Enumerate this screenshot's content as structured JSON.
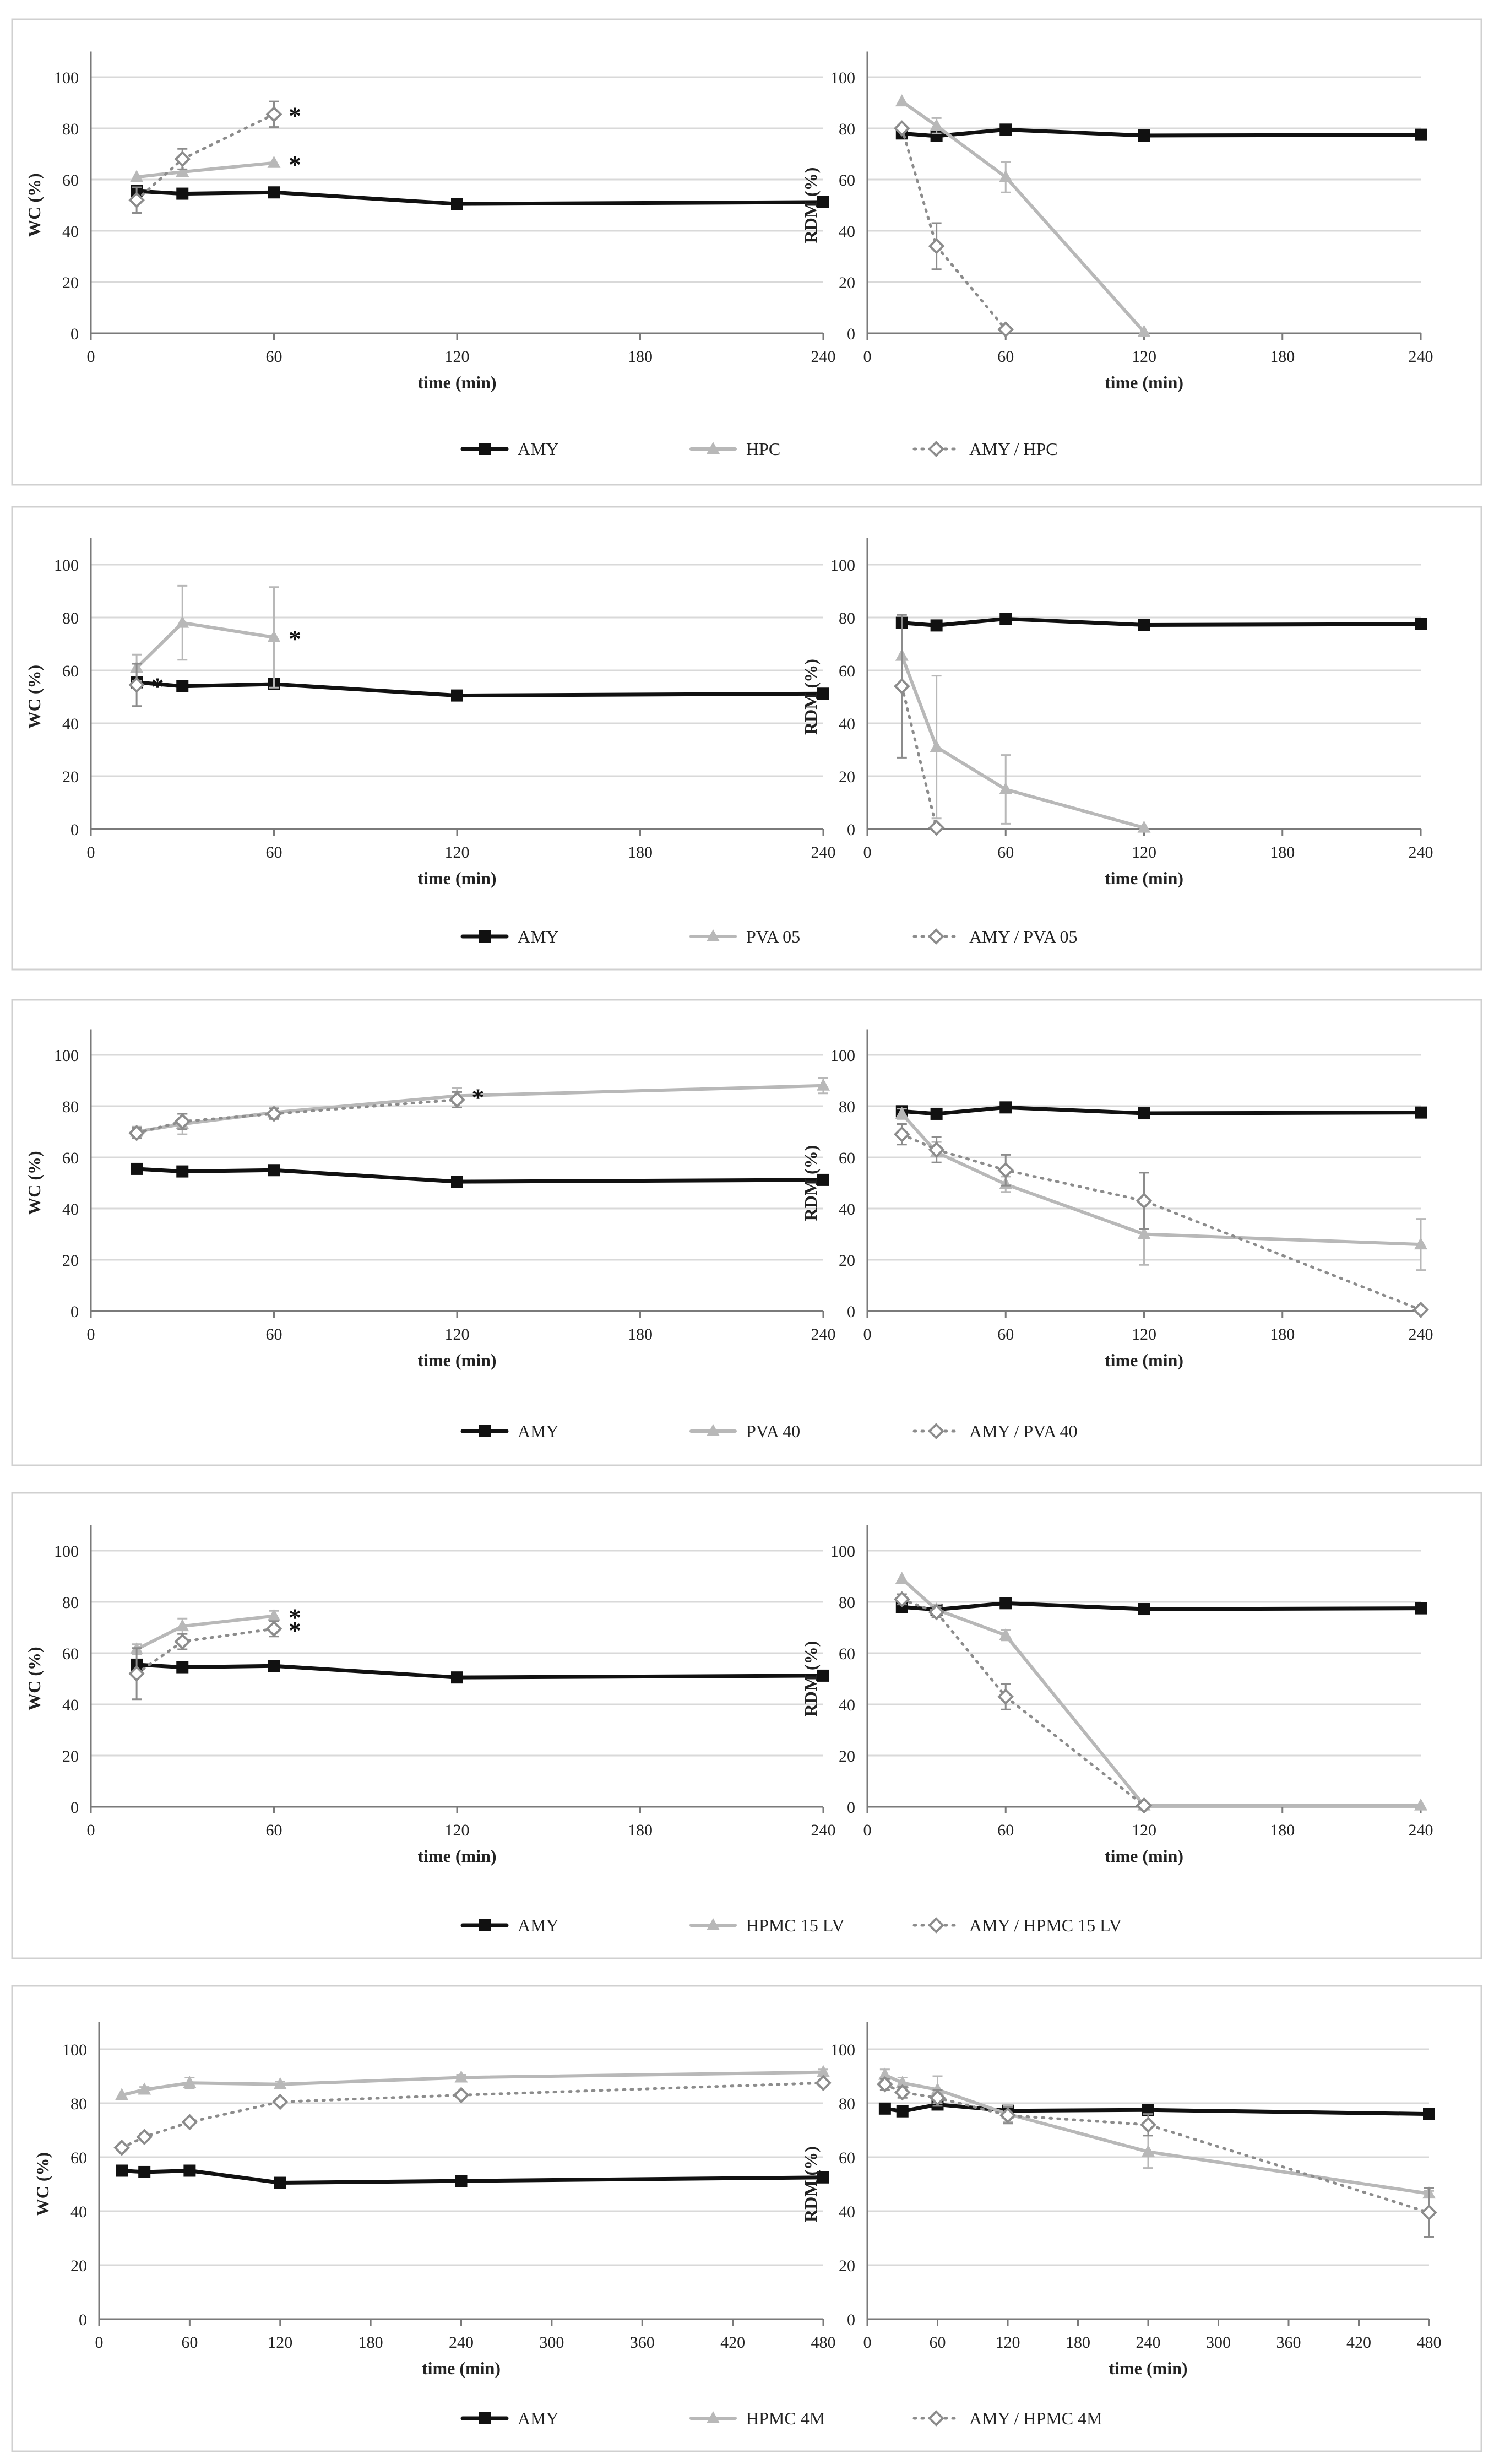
{
  "colors": {
    "amy": "#111111",
    "polymer": "#b8b8b8",
    "blend": "#8c8c8c",
    "grid": "#d9d9d9",
    "axis": "#7a7a7a",
    "frame": "#d0d0d0",
    "tick_text": "#222222"
  },
  "chart_data": [
    {
      "type": "line",
      "xlabel": "time (min)",
      "legend": [
        "AMY",
        "HPC",
        "AMY / HPC"
      ],
      "legend_position": "bottom-center",
      "panels": [
        {
          "ylabel": "WC (%)",
          "xlim": [
            0,
            240
          ],
          "xticks": [
            "0",
            "60",
            "120",
            "180",
            "240"
          ],
          "ylim": [
            0,
            100
          ],
          "yticks": [
            "0",
            "20",
            "40",
            "60",
            "80",
            "100"
          ],
          "series": [
            {
              "name": "AMY",
              "x": [
                15,
                30,
                60,
                120,
                240
              ],
              "y": [
                55.5,
                54.5,
                55,
                50.5,
                51.2
              ]
            },
            {
              "name": "HPC",
              "x": [
                15,
                30,
                60
              ],
              "y": [
                61,
                63,
                66.5
              ]
            },
            {
              "name": "AMY / HPC",
              "x": [
                15,
                30,
                60
              ],
              "y": [
                52,
                68,
                85.5
              ],
              "err": [
                5,
                4,
                5
              ]
            }
          ],
          "annotations": [
            {
              "x": 60,
              "y": 85.5,
              "text": "*"
            },
            {
              "x": 60,
              "y": 66.5,
              "text": "*"
            }
          ]
        },
        {
          "ylabel": "RDM (%)",
          "xlim": [
            0,
            240
          ],
          "xticks": [
            "0",
            "60",
            "120",
            "180",
            "240"
          ],
          "ylim": [
            0,
            100
          ],
          "yticks": [
            "0",
            "20",
            "40",
            "60",
            "80",
            "100"
          ],
          "series": [
            {
              "name": "AMY",
              "x": [
                15,
                30,
                60,
                120,
                240
              ],
              "y": [
                78,
                77,
                79.5,
                77.2,
                77.5
              ]
            },
            {
              "name": "HPC",
              "x": [
                15,
                30,
                60,
                120
              ],
              "y": [
                90.5,
                81,
                61,
                0.5
              ],
              "err": [
                0,
                3,
                6,
                0
              ]
            },
            {
              "name": "AMY / HPC",
              "x": [
                15,
                30,
                60
              ],
              "y": [
                80,
                34,
                1.5
              ],
              "err": [
                0,
                9,
                0
              ]
            }
          ],
          "annotations": []
        }
      ]
    },
    {
      "type": "line",
      "xlabel": "time (min)",
      "legend": [
        "AMY",
        "PVA 05",
        "AMY / PVA 05"
      ],
      "legend_position": "bottom-center",
      "panels": [
        {
          "ylabel": "WC (%)",
          "xlim": [
            0,
            240
          ],
          "xticks": [
            "0",
            "60",
            "120",
            "180",
            "240"
          ],
          "ylim": [
            0,
            100
          ],
          "yticks": [
            "0",
            "20",
            "40",
            "60",
            "80",
            "100"
          ],
          "series": [
            {
              "name": "AMY",
              "x": [
                15,
                30,
                60,
                120,
                240
              ],
              "y": [
                55.5,
                54,
                54.8,
                50.5,
                51.2
              ]
            },
            {
              "name": "PVA 05",
              "x": [
                15,
                30,
                60
              ],
              "y": [
                61,
                78,
                72.5
              ],
              "err": [
                5,
                14,
                19
              ]
            },
            {
              "name": "AMY / PVA 05",
              "x": [
                15
              ],
              "y": [
                54.5
              ],
              "err": [
                8
              ]
            }
          ],
          "annotations": [
            {
              "x": 60,
              "y": 72.5,
              "text": "*"
            },
            {
              "x": 15,
              "y": 54.5,
              "text": "*"
            }
          ]
        },
        {
          "ylabel": "RDM (%)",
          "xlim": [
            0,
            240
          ],
          "xticks": [
            "0",
            "60",
            "120",
            "180",
            "240"
          ],
          "ylim": [
            0,
            100
          ],
          "yticks": [
            "0",
            "20",
            "40",
            "60",
            "80",
            "100"
          ],
          "series": [
            {
              "name": "AMY",
              "x": [
                15,
                30,
                60,
                120,
                240
              ],
              "y": [
                78,
                77,
                79.5,
                77.2,
                77.5
              ]
            },
            {
              "name": "PVA 05",
              "x": [
                15,
                30,
                60,
                120
              ],
              "y": [
                65.5,
                31,
                15,
                0.5
              ],
              "err": [
                0,
                27,
                13,
                0
              ]
            },
            {
              "name": "AMY / PVA 05",
              "x": [
                15,
                30
              ],
              "y": [
                54,
                0.5
              ],
              "err": [
                27,
                0
              ]
            }
          ],
          "annotations": []
        }
      ]
    },
    {
      "type": "line",
      "xlabel": "time (min)",
      "legend": [
        "AMY",
        "PVA 40",
        "AMY / PVA 40"
      ],
      "legend_position": "bottom-center",
      "panels": [
        {
          "ylabel": "WC (%)",
          "xlim": [
            0,
            240
          ],
          "xticks": [
            "0",
            "60",
            "120",
            "180",
            "240"
          ],
          "ylim": [
            0,
            100
          ],
          "yticks": [
            "0",
            "20",
            "40",
            "60",
            "80",
            "100"
          ],
          "series": [
            {
              "name": "AMY",
              "x": [
                15,
                30,
                60,
                120,
                240
              ],
              "y": [
                55.5,
                54.5,
                55,
                50.5,
                51.2
              ]
            },
            {
              "name": "PVA 40",
              "x": [
                15,
                30,
                60,
                120,
                240
              ],
              "y": [
                70,
                73,
                77.5,
                84,
                88
              ],
              "err": [
                2,
                4,
                2,
                3,
                3
              ]
            },
            {
              "name": "AMY / PVA 40",
              "x": [
                15,
                30,
                60,
                120
              ],
              "y": [
                69.5,
                74,
                77,
                82.5
              ],
              "err": [
                2,
                3,
                2,
                3
              ]
            }
          ],
          "annotations": [
            {
              "x": 120,
              "y": 84,
              "text": "*"
            }
          ]
        },
        {
          "ylabel": "RDM (%)",
          "xlim": [
            0,
            240
          ],
          "xticks": [
            "0",
            "60",
            "120",
            "180",
            "240"
          ],
          "ylim": [
            0,
            100
          ],
          "yticks": [
            "0",
            "20",
            "40",
            "60",
            "80",
            "100"
          ],
          "series": [
            {
              "name": "AMY",
              "x": [
                15,
                30,
                60,
                120,
                240
              ],
              "y": [
                78,
                77,
                79.5,
                77.2,
                77.5
              ]
            },
            {
              "name": "PVA 40",
              "x": [
                15,
                30,
                60,
                120,
                240
              ],
              "y": [
                77,
                62,
                49.5,
                30,
                26
              ],
              "err": [
                2,
                4,
                3,
                12,
                10
              ]
            },
            {
              "name": "AMY / PVA 40",
              "x": [
                15,
                30,
                60,
                120,
                240
              ],
              "y": [
                69,
                63,
                55,
                43,
                0.5
              ],
              "err": [
                4,
                5,
                6,
                11,
                0
              ]
            }
          ],
          "annotations": []
        }
      ]
    },
    {
      "type": "line",
      "xlabel": "time (min)",
      "legend": [
        "AMY",
        "HPMC 15 LV",
        "AMY / HPMC 15 LV"
      ],
      "legend_position": "bottom-center",
      "panels": [
        {
          "ylabel": "WC (%)",
          "xlim": [
            0,
            240
          ],
          "xticks": [
            "0",
            "60",
            "120",
            "180",
            "240"
          ],
          "ylim": [
            0,
            100
          ],
          "yticks": [
            "0",
            "20",
            "40",
            "60",
            "80",
            "100"
          ],
          "series": [
            {
              "name": "AMY",
              "x": [
                15,
                30,
                60,
                120,
                240
              ],
              "y": [
                55.5,
                54.5,
                55,
                50.5,
                51.2
              ]
            },
            {
              "name": "HPMC 15 LV",
              "x": [
                15,
                30,
                60
              ],
              "y": [
                61.5,
                70.5,
                74.5
              ],
              "err": [
                2,
                3,
                2
              ]
            },
            {
              "name": "AMY / HPMC 15 LV",
              "x": [
                15,
                30,
                60
              ],
              "y": [
                52,
                64.5,
                69.5
              ],
              "err": [
                10,
                3,
                3
              ]
            }
          ],
          "annotations": [
            {
              "x": 60,
              "y": 74.5,
              "text": "*"
            },
            {
              "x": 60,
              "y": 69.5,
              "text": "*"
            }
          ]
        },
        {
          "ylabel": "RDM (%)",
          "xlim": [
            0,
            240
          ],
          "xticks": [
            "0",
            "60",
            "120",
            "180",
            "240"
          ],
          "ylim": [
            0,
            100
          ],
          "yticks": [
            "0",
            "20",
            "40",
            "60",
            "80",
            "100"
          ],
          "series": [
            {
              "name": "AMY",
              "x": [
                15,
                30,
                60,
                120,
                240
              ],
              "y": [
                78,
                77,
                79.5,
                77.2,
                77.5
              ]
            },
            {
              "name": "HPMC 15 LV",
              "x": [
                15,
                30,
                60,
                120,
                240
              ],
              "y": [
                89,
                77,
                67,
                0.5,
                0.5
              ],
              "err": [
                0,
                2,
                2,
                0,
                0
              ]
            },
            {
              "name": "AMY / HPMC 15 LV",
              "x": [
                15,
                30,
                60,
                120
              ],
              "y": [
                81,
                76,
                43,
                0.5
              ],
              "err": [
                2,
                2,
                5,
                0
              ]
            }
          ],
          "annotations": []
        }
      ]
    },
    {
      "type": "line",
      "xlabel": "time (min)",
      "legend": [
        "AMY",
        "HPMC 4M",
        "AMY / HPMC 4M"
      ],
      "legend_position": "bottom-center",
      "panels": [
        {
          "ylabel": "WC (%)",
          "xlim": [
            0,
            480
          ],
          "xticks": [
            "0",
            "60",
            "120",
            "180",
            "240",
            "300",
            "360",
            "420",
            "480"
          ],
          "ylim": [
            0,
            100
          ],
          "yticks": [
            "0",
            "20",
            "40",
            "60",
            "80",
            "100"
          ],
          "series": [
            {
              "name": "AMY",
              "x": [
                15,
                30,
                60,
                120,
                240,
                480
              ],
              "y": [
                55,
                54.5,
                55,
                50.5,
                51.2,
                52.5
              ]
            },
            {
              "name": "HPMC 4M",
              "x": [
                15,
                30,
                60,
                120,
                240,
                480
              ],
              "y": [
                83,
                85,
                87.5,
                87,
                89.5,
                91.5
              ],
              "err": [
                0,
                1,
                2,
                1,
                1,
                1
              ]
            },
            {
              "name": "AMY / HPMC 4M",
              "x": [
                15,
                30,
                60,
                120,
                240,
                480
              ],
              "y": [
                63.5,
                67.5,
                73,
                80.5,
                83,
                87.5
              ],
              "err": [
                1,
                1,
                1,
                1,
                1,
                1
              ]
            }
          ],
          "annotations": []
        },
        {
          "ylabel": "RDM (%)",
          "xlim": [
            0,
            480
          ],
          "xticks": [
            "0",
            "60",
            "120",
            "180",
            "240",
            "300",
            "360",
            "420",
            "480"
          ],
          "ylim": [
            0,
            100
          ],
          "yticks": [
            "0",
            "20",
            "40",
            "60",
            "80",
            "100"
          ],
          "series": [
            {
              "name": "AMY",
              "x": [
                15,
                30,
                60,
                120,
                240,
                480
              ],
              "y": [
                78,
                77,
                79.5,
                77.2,
                77.5,
                76
              ]
            },
            {
              "name": "HPMC 4M",
              "x": [
                15,
                30,
                60,
                120,
                240,
                480
              ],
              "y": [
                90.5,
                87.5,
                85,
                76,
                62,
                46.5
              ],
              "err": [
                2,
                2,
                5,
                3,
                6,
                1
              ]
            },
            {
              "name": "AMY / HPMC 4M",
              "x": [
                15,
                30,
                60,
                120,
                240,
                480
              ],
              "y": [
                87,
                84,
                82,
                75.5,
                72,
                39.5
              ],
              "err": [
                2,
                2,
                3,
                3,
                4,
                9
              ]
            }
          ],
          "annotations": []
        }
      ]
    }
  ]
}
